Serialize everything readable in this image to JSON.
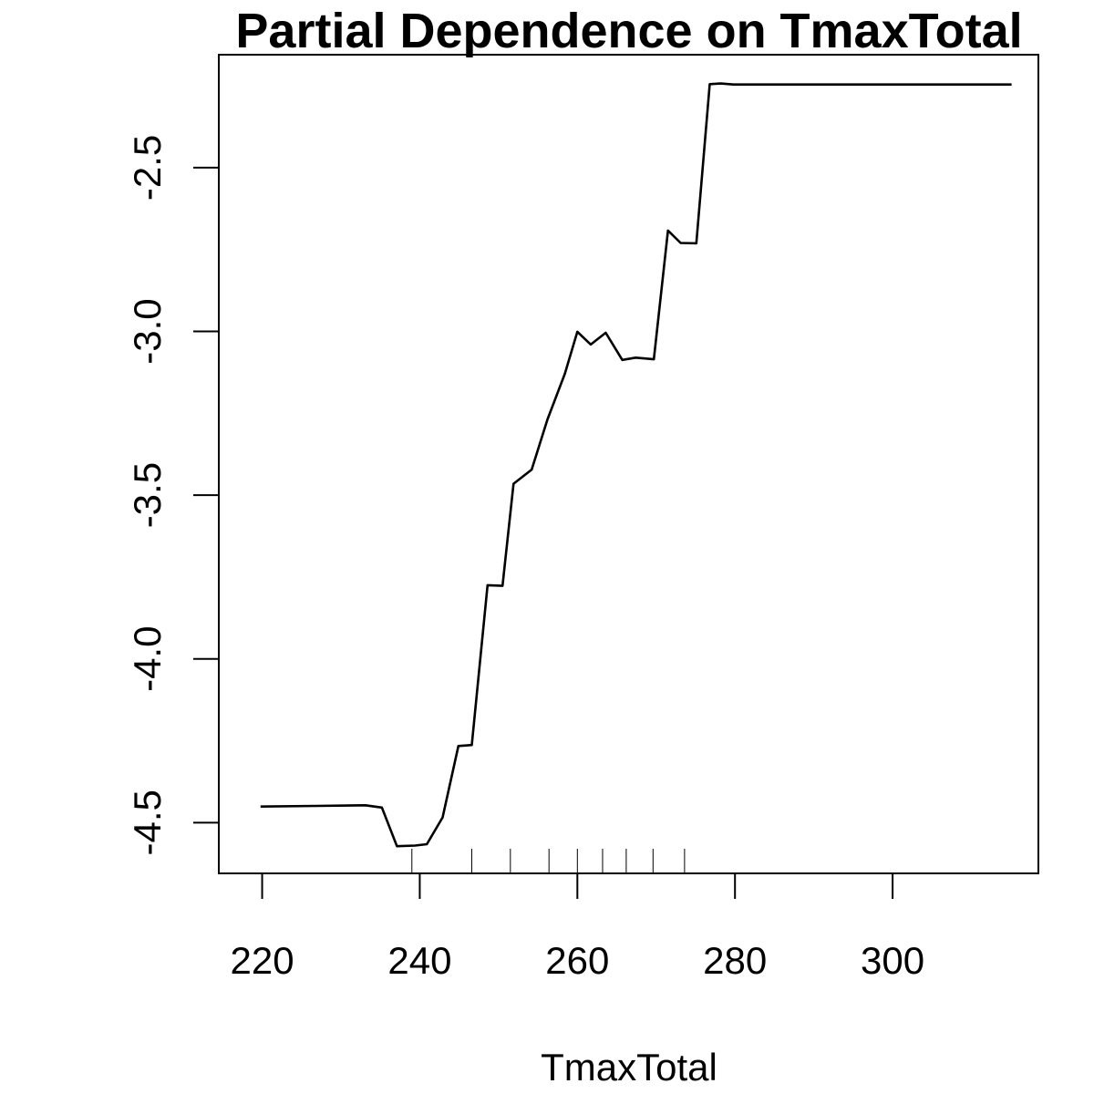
{
  "chart_data": {
    "type": "line",
    "title": "Partial Dependence on TmaxTotal",
    "xlabel": "TmaxTotal",
    "ylabel": "",
    "xlim": [
      214.5,
      318.5
    ],
    "ylim": [
      -4.655,
      -2.155
    ],
    "x_ticks": [
      220,
      240,
      260,
      280,
      300
    ],
    "x_tick_labels": [
      "220",
      "240",
      "260",
      "280",
      "300"
    ],
    "y_ticks": [
      -4.5,
      -4.0,
      -3.5,
      -3.0,
      -2.5
    ],
    "y_tick_labels": [
      "-4.5",
      "-4.0",
      "-3.5",
      "-3.0",
      "-2.5"
    ],
    "grid": false,
    "legend": "none",
    "line_color": "#000000",
    "series": [
      {
        "x": [
          219.8,
          226.9,
          233.1,
          235.2,
          237.1,
          239.4,
          240.9,
          242.9,
          244.9,
          246.6,
          248.6,
          250.5,
          251.9,
          254.2,
          256.2,
          258.4,
          260.0,
          261.7,
          263.6,
          265.7,
          267.4,
          269.7,
          271.5,
          273.1,
          275.1,
          276.8,
          278.2,
          279.8,
          315.1
        ],
        "y": [
          -4.451,
          -4.449,
          -4.447,
          -4.454,
          -4.572,
          -4.57,
          -4.566,
          -4.484,
          -4.266,
          -4.263,
          -3.775,
          -3.777,
          -3.465,
          -3.422,
          -3.269,
          -3.13,
          -3.001,
          -3.04,
          -3.004,
          -3.087,
          -3.08,
          -3.085,
          -2.692,
          -2.73,
          -2.731,
          -2.245,
          -2.243,
          -2.246,
          -2.246
        ]
      }
    ],
    "rug": [
      239.0,
      246.6,
      251.5,
      256.4,
      260.0,
      263.2,
      266.2,
      269.6,
      273.6
    ]
  }
}
